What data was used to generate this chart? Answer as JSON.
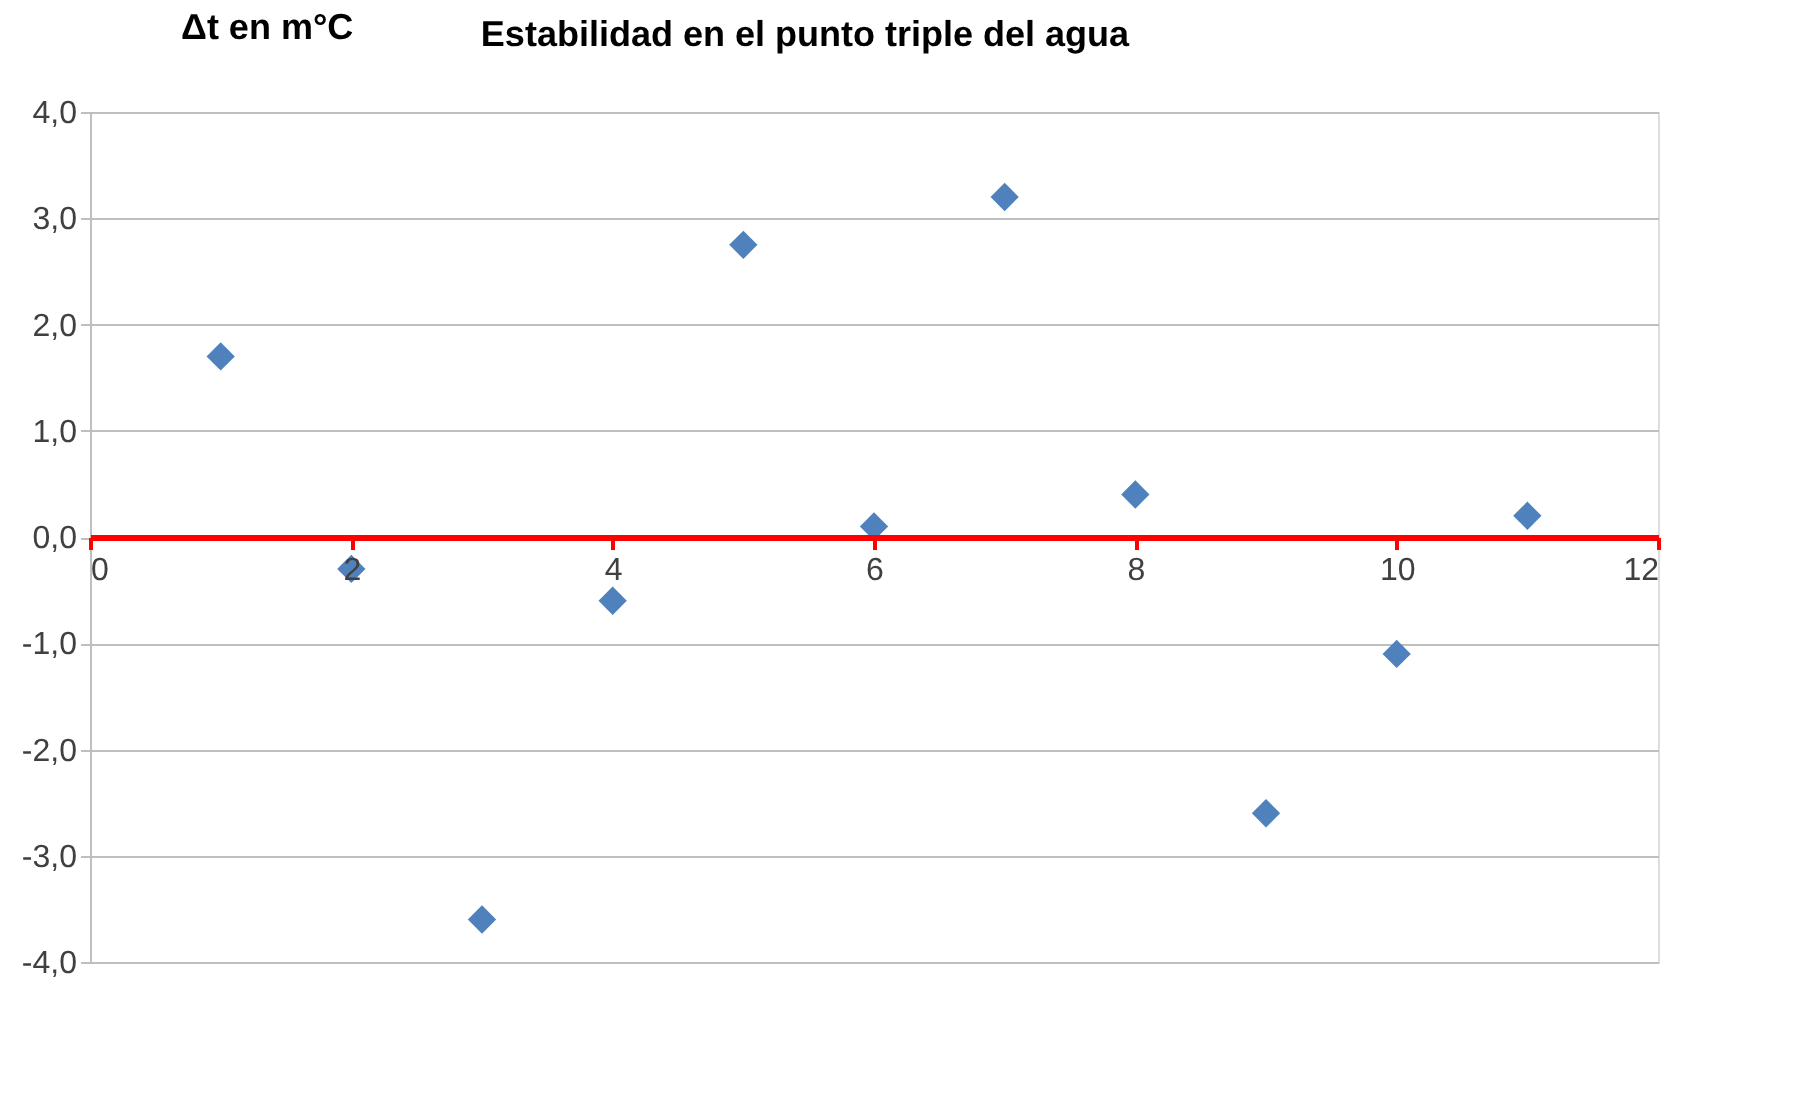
{
  "chart_data": {
    "type": "scatter",
    "title": "Estabilidad en el punto triple del agua",
    "ylabel": "Δt en m°C",
    "x": [
      1,
      2,
      3,
      4,
      5,
      6,
      7,
      8,
      9,
      10,
      11
    ],
    "series": [
      {
        "color": "#4f81bd",
        "values": [
          1.7,
          -0.3,
          -3.6,
          -0.6,
          2.75,
          0.1,
          3.2,
          0.4,
          -2.6,
          -1.1,
          0.2
        ]
      }
    ],
    "xlim": [
      0,
      12
    ],
    "xticks": [
      0,
      2,
      4,
      6,
      8,
      10,
      12
    ],
    "ylim": [
      -4,
      4
    ],
    "yticks": [
      {
        "value": -4,
        "label": "-4,0"
      },
      {
        "value": -3,
        "label": "-3,0"
      },
      {
        "value": -2,
        "label": "-2,0"
      },
      {
        "value": -1,
        "label": "-1,0"
      },
      {
        "value": 0,
        "label": "0,0"
      },
      {
        "value": 1,
        "label": "1,0"
      },
      {
        "value": 2,
        "label": "2,0"
      },
      {
        "value": 3,
        "label": "3,0"
      },
      {
        "value": 4,
        "label": "4,0"
      }
    ],
    "grid": "y",
    "marker": "diamond"
  }
}
